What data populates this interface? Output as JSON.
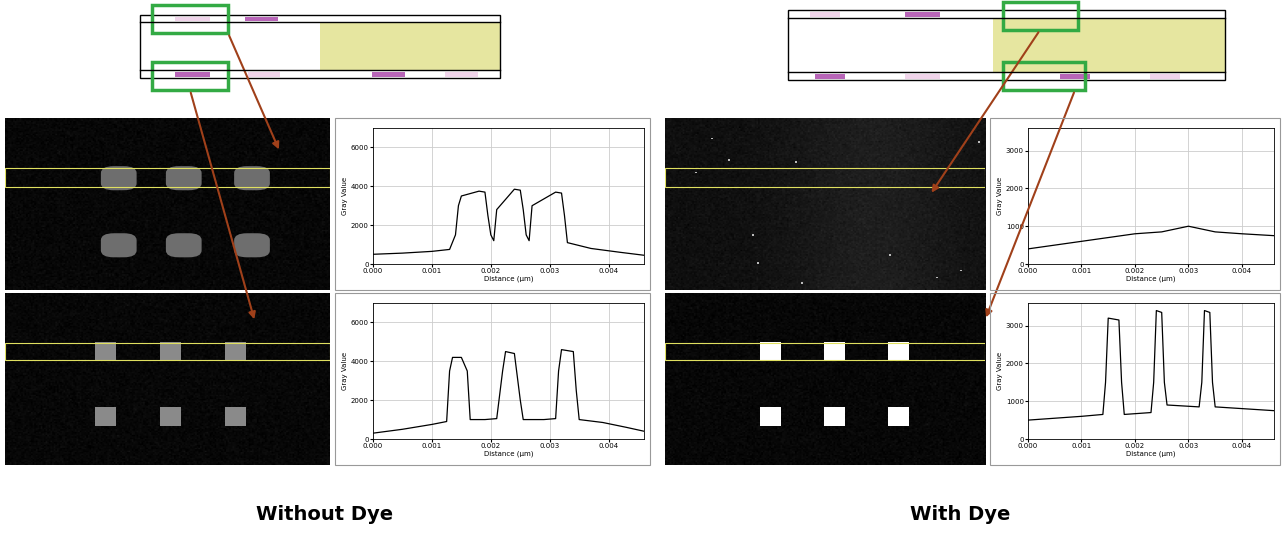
{
  "chart_data": [
    {
      "type": "line",
      "xlabel": "Distance (µm)",
      "ylabel": "Gray Value",
      "color": "#000000",
      "grid": true,
      "x": [
        0,
        0.0005,
        0.001,
        0.0013,
        0.0014,
        0.00145,
        0.0015,
        0.0018,
        0.0019,
        0.00195,
        0.002,
        0.00205,
        0.0021,
        0.0024,
        0.0025,
        0.00255,
        0.0026,
        0.00265,
        0.0027,
        0.0031,
        0.0032,
        0.00325,
        0.0033,
        0.0037,
        0.0042,
        0.0046
      ],
      "values": [
        500,
        560,
        650,
        750,
        1500,
        3000,
        3500,
        3750,
        3700,
        2500,
        1500,
        1200,
        2800,
        3850,
        3800,
        2800,
        1500,
        1200,
        3000,
        3700,
        3650,
        2500,
        1100,
        800,
        600,
        450
      ],
      "xlim": [
        0,
        0.0046
      ],
      "ylim": [
        0,
        7000
      ],
      "xticks": [
        {
          "value": 0,
          "label": "0.000"
        },
        {
          "value": 0.001,
          "label": "0.001"
        },
        {
          "value": 0.002,
          "label": "0.002"
        },
        {
          "value": 0.003,
          "label": "0.003"
        },
        {
          "value": 0.004,
          "label": "0.004"
        }
      ],
      "yticks": [
        0,
        2000,
        4000,
        6000
      ]
    },
    {
      "type": "line",
      "xlabel": "Distance (µm)",
      "ylabel": "Gray Value",
      "color": "#000000",
      "grid": true,
      "x": [
        0,
        0.0005,
        0.001,
        0.00125,
        0.0013,
        0.00135,
        0.0015,
        0.0016,
        0.00165,
        0.0019,
        0.0021,
        0.0022,
        0.00225,
        0.0024,
        0.0025,
        0.00255,
        0.0029,
        0.0031,
        0.00315,
        0.0032,
        0.0034,
        0.00345,
        0.0035,
        0.0039,
        0.0043,
        0.0046
      ],
      "values": [
        300,
        500,
        750,
        900,
        3500,
        4200,
        4200,
        3500,
        1000,
        1000,
        1050,
        3500,
        4500,
        4400,
        2000,
        1000,
        1000,
        1050,
        3500,
        4600,
        4500,
        2500,
        1000,
        850,
        600,
        400
      ],
      "xlim": [
        0,
        0.0046
      ],
      "ylim": [
        0,
        7000
      ],
      "xticks": [
        {
          "value": 0,
          "label": "0.000"
        },
        {
          "value": 0.001,
          "label": "0.001"
        },
        {
          "value": 0.002,
          "label": "0.002"
        },
        {
          "value": 0.003,
          "label": "0.003"
        },
        {
          "value": 0.004,
          "label": "0.004"
        }
      ],
      "yticks": [
        0,
        2000,
        4000,
        6000
      ]
    },
    {
      "type": "line",
      "xlabel": "Distance (µm)",
      "ylabel": "Gray Value",
      "color": "#000000",
      "grid": true,
      "x": [
        0,
        0.0005,
        0.001,
        0.0015,
        0.002,
        0.0025,
        0.003,
        0.0035,
        0.004,
        0.0046
      ],
      "values": [
        400,
        500,
        600,
        700,
        800,
        850,
        1000,
        850,
        800,
        750
      ],
      "xlim": [
        0,
        0.0046
      ],
      "ylim": [
        0,
        3600
      ],
      "xticks": [
        {
          "value": 0,
          "label": "0.000"
        },
        {
          "value": 0.001,
          "label": "0.001"
        },
        {
          "value": 0.002,
          "label": "0.002"
        },
        {
          "value": 0.003,
          "label": "0.003"
        },
        {
          "value": 0.004,
          "label": "0.004"
        }
      ],
      "yticks": [
        0,
        1000,
        2000,
        3000
      ]
    },
    {
      "type": "line",
      "xlabel": "Distance (µm)",
      "ylabel": "Gray Value",
      "color": "#000000",
      "grid": true,
      "x": [
        0,
        0.0005,
        0.001,
        0.0014,
        0.00145,
        0.0015,
        0.0017,
        0.00175,
        0.0018,
        0.0023,
        0.00235,
        0.0024,
        0.0025,
        0.00255,
        0.0026,
        0.0032,
        0.00325,
        0.0033,
        0.0034,
        0.00345,
        0.0035,
        0.0046
      ],
      "values": [
        500,
        550,
        600,
        650,
        1500,
        3200,
        3150,
        1500,
        650,
        700,
        1500,
        3400,
        3350,
        1500,
        900,
        850,
        1500,
        3400,
        3350,
        1500,
        850,
        750
      ],
      "xlim": [
        0,
        0.0046
      ],
      "ylim": [
        0,
        3600
      ],
      "xticks": [
        {
          "value": 0,
          "label": "0.000"
        },
        {
          "value": 0.001,
          "label": "0.001"
        },
        {
          "value": 0.002,
          "label": "0.002"
        },
        {
          "value": 0.003,
          "label": "0.003"
        },
        {
          "value": 0.004,
          "label": "0.004"
        }
      ],
      "yticks": [
        0,
        1000,
        2000,
        3000
      ]
    }
  ],
  "panel_titles": [
    "Without Dye",
    "With Dye"
  ]
}
